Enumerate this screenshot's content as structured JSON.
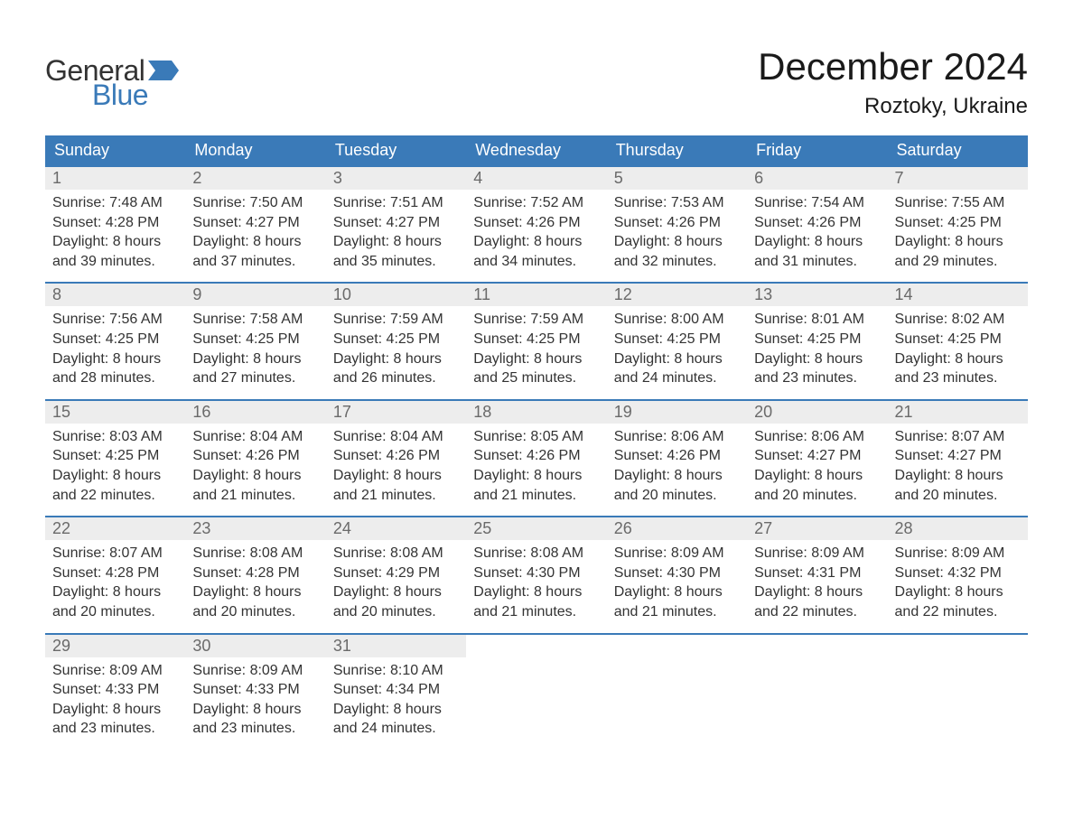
{
  "brand": {
    "word1": "General",
    "word2": "Blue",
    "word1_color": "#333333",
    "word2_color": "#3a7ab8",
    "flag_color": "#3a7ab8"
  },
  "title": "December 2024",
  "location": "Roztoky, Ukraine",
  "colors": {
    "header_bg": "#3a7ab8",
    "header_text": "#ffffff",
    "week_border": "#3a7ab8",
    "daynum_bg": "#ededed",
    "daynum_text": "#6a6a6a",
    "body_text": "#333333",
    "page_bg": "#ffffff"
  },
  "typography": {
    "title_fontsize": 42,
    "location_fontsize": 24,
    "weekday_fontsize": 18,
    "daynum_fontsize": 18,
    "body_fontsize": 16
  },
  "layout": {
    "columns": 7,
    "rows": 5,
    "cell_min_height": 126
  },
  "weekdays": [
    "Sunday",
    "Monday",
    "Tuesday",
    "Wednesday",
    "Thursday",
    "Friday",
    "Saturday"
  ],
  "weeks": [
    [
      {
        "d": "1",
        "sunrise": "7:48 AM",
        "sunset": "4:28 PM",
        "dl1": "Daylight: 8 hours",
        "dl2": "and 39 minutes."
      },
      {
        "d": "2",
        "sunrise": "7:50 AM",
        "sunset": "4:27 PM",
        "dl1": "Daylight: 8 hours",
        "dl2": "and 37 minutes."
      },
      {
        "d": "3",
        "sunrise": "7:51 AM",
        "sunset": "4:27 PM",
        "dl1": "Daylight: 8 hours",
        "dl2": "and 35 minutes."
      },
      {
        "d": "4",
        "sunrise": "7:52 AM",
        "sunset": "4:26 PM",
        "dl1": "Daylight: 8 hours",
        "dl2": "and 34 minutes."
      },
      {
        "d": "5",
        "sunrise": "7:53 AM",
        "sunset": "4:26 PM",
        "dl1": "Daylight: 8 hours",
        "dl2": "and 32 minutes."
      },
      {
        "d": "6",
        "sunrise": "7:54 AM",
        "sunset": "4:26 PM",
        "dl1": "Daylight: 8 hours",
        "dl2": "and 31 minutes."
      },
      {
        "d": "7",
        "sunrise": "7:55 AM",
        "sunset": "4:25 PM",
        "dl1": "Daylight: 8 hours",
        "dl2": "and 29 minutes."
      }
    ],
    [
      {
        "d": "8",
        "sunrise": "7:56 AM",
        "sunset": "4:25 PM",
        "dl1": "Daylight: 8 hours",
        "dl2": "and 28 minutes."
      },
      {
        "d": "9",
        "sunrise": "7:58 AM",
        "sunset": "4:25 PM",
        "dl1": "Daylight: 8 hours",
        "dl2": "and 27 minutes."
      },
      {
        "d": "10",
        "sunrise": "7:59 AM",
        "sunset": "4:25 PM",
        "dl1": "Daylight: 8 hours",
        "dl2": "and 26 minutes."
      },
      {
        "d": "11",
        "sunrise": "7:59 AM",
        "sunset": "4:25 PM",
        "dl1": "Daylight: 8 hours",
        "dl2": "and 25 minutes."
      },
      {
        "d": "12",
        "sunrise": "8:00 AM",
        "sunset": "4:25 PM",
        "dl1": "Daylight: 8 hours",
        "dl2": "and 24 minutes."
      },
      {
        "d": "13",
        "sunrise": "8:01 AM",
        "sunset": "4:25 PM",
        "dl1": "Daylight: 8 hours",
        "dl2": "and 23 minutes."
      },
      {
        "d": "14",
        "sunrise": "8:02 AM",
        "sunset": "4:25 PM",
        "dl1": "Daylight: 8 hours",
        "dl2": "and 23 minutes."
      }
    ],
    [
      {
        "d": "15",
        "sunrise": "8:03 AM",
        "sunset": "4:25 PM",
        "dl1": "Daylight: 8 hours",
        "dl2": "and 22 minutes."
      },
      {
        "d": "16",
        "sunrise": "8:04 AM",
        "sunset": "4:26 PM",
        "dl1": "Daylight: 8 hours",
        "dl2": "and 21 minutes."
      },
      {
        "d": "17",
        "sunrise": "8:04 AM",
        "sunset": "4:26 PM",
        "dl1": "Daylight: 8 hours",
        "dl2": "and 21 minutes."
      },
      {
        "d": "18",
        "sunrise": "8:05 AM",
        "sunset": "4:26 PM",
        "dl1": "Daylight: 8 hours",
        "dl2": "and 21 minutes."
      },
      {
        "d": "19",
        "sunrise": "8:06 AM",
        "sunset": "4:26 PM",
        "dl1": "Daylight: 8 hours",
        "dl2": "and 20 minutes."
      },
      {
        "d": "20",
        "sunrise": "8:06 AM",
        "sunset": "4:27 PM",
        "dl1": "Daylight: 8 hours",
        "dl2": "and 20 minutes."
      },
      {
        "d": "21",
        "sunrise": "8:07 AM",
        "sunset": "4:27 PM",
        "dl1": "Daylight: 8 hours",
        "dl2": "and 20 minutes."
      }
    ],
    [
      {
        "d": "22",
        "sunrise": "8:07 AM",
        "sunset": "4:28 PM",
        "dl1": "Daylight: 8 hours",
        "dl2": "and 20 minutes."
      },
      {
        "d": "23",
        "sunrise": "8:08 AM",
        "sunset": "4:28 PM",
        "dl1": "Daylight: 8 hours",
        "dl2": "and 20 minutes."
      },
      {
        "d": "24",
        "sunrise": "8:08 AM",
        "sunset": "4:29 PM",
        "dl1": "Daylight: 8 hours",
        "dl2": "and 20 minutes."
      },
      {
        "d": "25",
        "sunrise": "8:08 AM",
        "sunset": "4:30 PM",
        "dl1": "Daylight: 8 hours",
        "dl2": "and 21 minutes."
      },
      {
        "d": "26",
        "sunrise": "8:09 AM",
        "sunset": "4:30 PM",
        "dl1": "Daylight: 8 hours",
        "dl2": "and 21 minutes."
      },
      {
        "d": "27",
        "sunrise": "8:09 AM",
        "sunset": "4:31 PM",
        "dl1": "Daylight: 8 hours",
        "dl2": "and 22 minutes."
      },
      {
        "d": "28",
        "sunrise": "8:09 AM",
        "sunset": "4:32 PM",
        "dl1": "Daylight: 8 hours",
        "dl2": "and 22 minutes."
      }
    ],
    [
      {
        "d": "29",
        "sunrise": "8:09 AM",
        "sunset": "4:33 PM",
        "dl1": "Daylight: 8 hours",
        "dl2": "and 23 minutes."
      },
      {
        "d": "30",
        "sunrise": "8:09 AM",
        "sunset": "4:33 PM",
        "dl1": "Daylight: 8 hours",
        "dl2": "and 23 minutes."
      },
      {
        "d": "31",
        "sunrise": "8:10 AM",
        "sunset": "4:34 PM",
        "dl1": "Daylight: 8 hours",
        "dl2": "and 24 minutes."
      },
      null,
      null,
      null,
      null
    ]
  ],
  "labels": {
    "sunrise_prefix": "Sunrise: ",
    "sunset_prefix": "Sunset: "
  }
}
